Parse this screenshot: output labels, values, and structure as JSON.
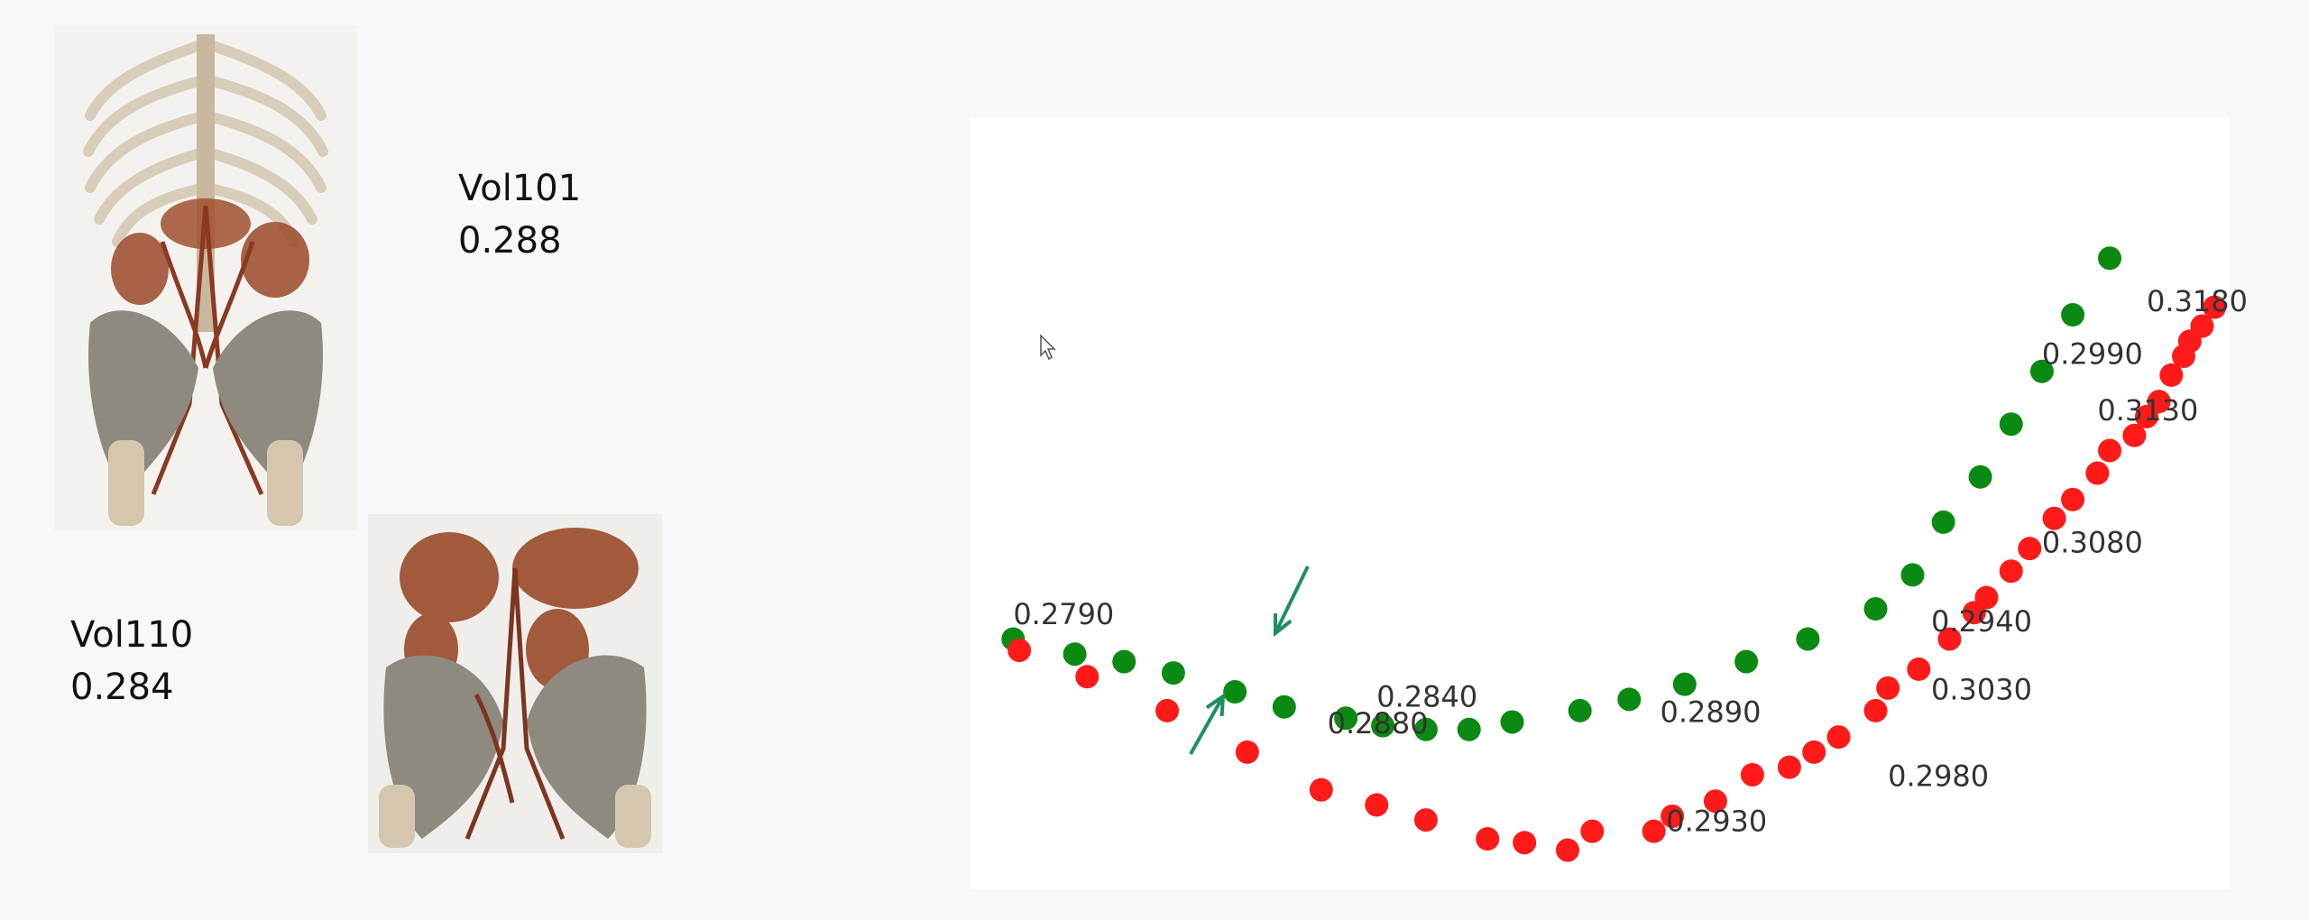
{
  "volumes": [
    {
      "name": "Vol101",
      "value": "0.288"
    },
    {
      "name": "Vol110",
      "value": "0.284"
    }
  ],
  "colors": {
    "green": "#0a8a12",
    "red": "#ff1a1a",
    "arrow": "#1f8f5f"
  },
  "icons": [
    "mouse-cursor-icon"
  ],
  "chart_data": {
    "type": "scatter",
    "title": "",
    "xlabel": "",
    "ylabel": "",
    "grid": false,
    "xlim": [
      0,
      100
    ],
    "ylim": [
      0,
      100
    ],
    "series": [
      {
        "color": "#0a8a12",
        "points": [
          [
            2,
            32
          ],
          [
            7,
            30
          ],
          [
            11,
            29
          ],
          [
            15,
            27.5
          ],
          [
            20,
            25
          ],
          [
            24,
            23
          ],
          [
            29,
            21.5
          ],
          [
            32,
            20.5
          ],
          [
            35.5,
            20
          ],
          [
            39,
            20
          ],
          [
            42.5,
            21
          ],
          [
            48,
            22.5
          ],
          [
            52,
            24
          ],
          [
            56.5,
            26
          ],
          [
            61.5,
            29
          ],
          [
            66.5,
            32
          ],
          [
            72,
            36
          ],
          [
            75,
            40.5
          ],
          [
            77.5,
            47.5
          ],
          [
            80.5,
            53.5
          ],
          [
            83,
            60.5
          ],
          [
            85.5,
            67.5
          ],
          [
            88,
            75
          ],
          [
            91,
            82.5
          ]
        ]
      },
      {
        "color": "#ff1a1a",
        "points": [
          [
            2.5,
            30.5
          ],
          [
            8,
            27
          ],
          [
            14.5,
            22.5
          ],
          [
            21,
            17
          ],
          [
            27,
            12
          ],
          [
            31.5,
            10
          ],
          [
            35.5,
            8
          ],
          [
            40.5,
            5.5
          ],
          [
            43.5,
            5
          ],
          [
            47,
            4
          ],
          [
            49,
            6.5
          ],
          [
            54,
            6.5
          ],
          [
            55.5,
            8.5
          ],
          [
            59,
            10.5
          ],
          [
            62,
            14
          ],
          [
            65,
            15
          ],
          [
            67,
            17
          ],
          [
            69,
            19
          ],
          [
            72,
            22.5
          ],
          [
            73,
            25.5
          ],
          [
            75.5,
            28
          ],
          [
            78,
            32
          ],
          [
            80,
            35.5
          ],
          [
            81,
            37.5
          ],
          [
            83,
            41
          ],
          [
            84.5,
            44
          ],
          [
            86.5,
            48
          ],
          [
            88,
            50.5
          ],
          [
            90,
            54
          ],
          [
            91,
            57
          ],
          [
            93,
            59
          ],
          [
            94,
            61.5
          ],
          [
            95,
            63.5
          ],
          [
            96,
            67
          ],
          [
            97,
            69.5
          ],
          [
            97.5,
            71.5
          ],
          [
            98.5,
            73.5
          ],
          [
            99.5,
            76
          ]
        ]
      }
    ],
    "annotations": [
      {
        "text": "0.2790",
        "x": 2,
        "y": 34
      },
      {
        "text": "0.2840",
        "x": 31.5,
        "y": 23
      },
      {
        "text": "0.2880",
        "x": 27.5,
        "y": 19.5
      },
      {
        "text": "0.2890",
        "x": 54.5,
        "y": 21
      },
      {
        "text": "0.2930",
        "x": 55,
        "y": 6.5
      },
      {
        "text": "0.2940",
        "x": 76.5,
        "y": 33
      },
      {
        "text": "0.2980",
        "x": 73,
        "y": 12.5
      },
      {
        "text": "0.2990",
        "x": 85.5,
        "y": 68.5
      },
      {
        "text": "0.3030",
        "x": 76.5,
        "y": 24
      },
      {
        "text": "0.3080",
        "x": 85.5,
        "y": 43.5
      },
      {
        "text": "0.3130",
        "x": 90,
        "y": 61
      },
      {
        "text": "0.3180",
        "x": 94,
        "y": 75.5
      }
    ]
  }
}
